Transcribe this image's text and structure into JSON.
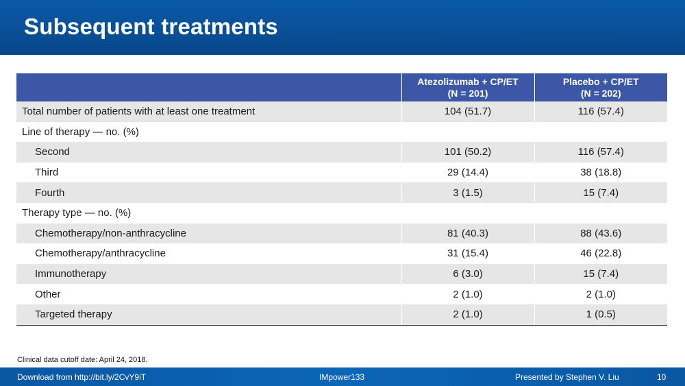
{
  "header": {
    "title": "Subsequent treatments"
  },
  "table": {
    "columns": [
      "",
      "Atezolizumab + CP/ET\n(N = 201)",
      "Placebo + CP/ET\n(N = 202)"
    ],
    "column_lines": [
      [],
      [
        "Atezolizumab + CP/ET",
        "(N = 201)"
      ],
      [
        "Placebo + CP/ET",
        "(N = 202)"
      ]
    ],
    "rows": [
      {
        "label": "Total number of patients with at least one treatment",
        "atezo": "104 (51.7)",
        "placebo": "116 (57.4)"
      },
      {
        "label": "Line of therapy — no. (%)",
        "atezo": "",
        "placebo": ""
      },
      {
        "label": "Second",
        "atezo": "101 (50.2)",
        "placebo": "116 (57.4)"
      },
      {
        "label": "Third",
        "atezo": "29 (14.4)",
        "placebo": "38 (18.8)"
      },
      {
        "label": "Fourth",
        "atezo": "3 (1.5)",
        "placebo": "15 (7.4)"
      },
      {
        "label": "Therapy type — no. (%)",
        "atezo": "",
        "placebo": ""
      },
      {
        "label": "Chemotherapy/non-anthracycline",
        "atezo": "81 (40.3)",
        "placebo": "88 (43.6)"
      },
      {
        "label": "Chemotherapy/anthracycline",
        "atezo": "31 (15.4)",
        "placebo": "46 (22.8)"
      },
      {
        "label": "Immunotherapy",
        "atezo": "6 (3.0)",
        "placebo": "15 (7.4)"
      },
      {
        "label": "Other",
        "atezo": "2 (1.0)",
        "placebo": "2 (1.0)"
      },
      {
        "label": "Targeted therapy",
        "atezo": "2 (1.0)",
        "placebo": "1 (0.5)"
      }
    ]
  },
  "footnote": "Clinical data cutoff date: April 24, 2018.",
  "footer": {
    "download": "Download from http://bit.ly/2CvY9iT",
    "study": "IMpower133",
    "presenter": "Presented by Stephen V. Liu",
    "page": "10"
  }
}
